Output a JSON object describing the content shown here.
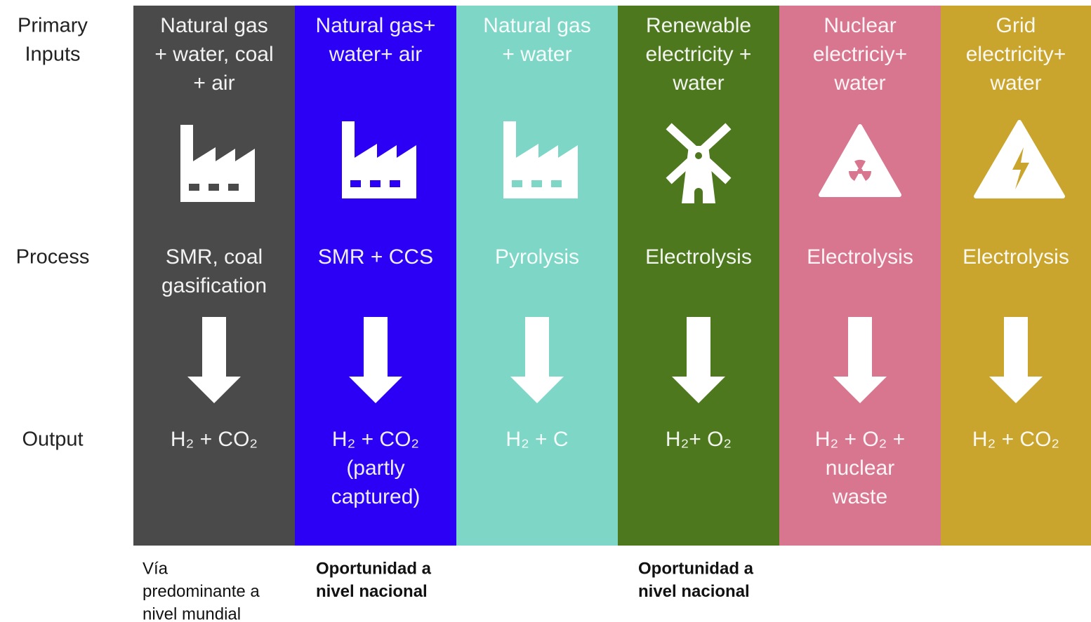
{
  "row_labels": {
    "inputs": [
      "Primary",
      "Inputs"
    ],
    "process": "Process",
    "output": "Output"
  },
  "columns": [
    {
      "color": "#4a4a4a",
      "inputs": [
        "Natural gas",
        "+ water, coal",
        "+ air"
      ],
      "process": [
        "SMR, coal",
        "gasification"
      ],
      "output": [
        "H₂ + CO₂"
      ]
    },
    {
      "color": "#2b00f4",
      "inputs": [
        "Natural gas+",
        "water+ air"
      ],
      "process": [
        "SMR + CCS"
      ],
      "output": [
        "H₂ + CO₂",
        "(partly",
        "captured)"
      ]
    },
    {
      "color": "#7dd6c6",
      "inputs": [
        "Natural gas",
        "+ water"
      ],
      "process": [
        "Pyrolysis"
      ],
      "output": [
        "H₂ + C"
      ]
    },
    {
      "color": "#4e781d",
      "inputs": [
        "Renewable",
        "electricity +",
        "water"
      ],
      "process": [
        "Electrolysis"
      ],
      "output": [
        "H₂+ O₂"
      ]
    },
    {
      "color": "#d9768f",
      "inputs": [
        "Nuclear",
        "electriciy+",
        "water"
      ],
      "process": [
        "Electrolysis"
      ],
      "output": [
        "H₂ + O₂ +",
        "nuclear",
        "waste"
      ]
    },
    {
      "color": "#c9a52e",
      "inputs": [
        "Grid",
        "electricity+",
        "water"
      ],
      "process": [
        "Electrolysis"
      ],
      "output": [
        "H₂ + CO₂"
      ]
    }
  ],
  "notes": [
    {
      "lines": [
        "Vía",
        "predominante a",
        "nivel mundial"
      ],
      "bold": false
    },
    {
      "lines": [
        "Oportunidad a",
        "nivel nacional"
      ],
      "bold": true
    },
    {
      "lines": [
        "Oportunidad a",
        "nivel nacional"
      ],
      "bold": true
    }
  ]
}
